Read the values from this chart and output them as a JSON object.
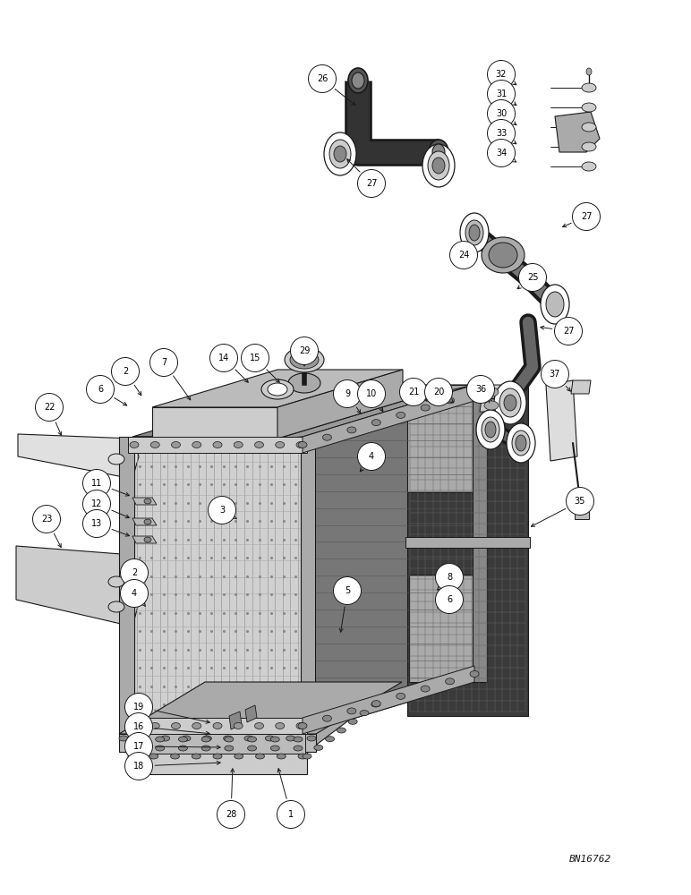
{
  "bg_color": "#ffffff",
  "line_color": "#1a1a1a",
  "figure_id": "BN16762",
  "fig_width": 7.72,
  "fig_height": 10.0,
  "dpi": 100,
  "callout_r": 0.155,
  "callout_fs": 7.0
}
